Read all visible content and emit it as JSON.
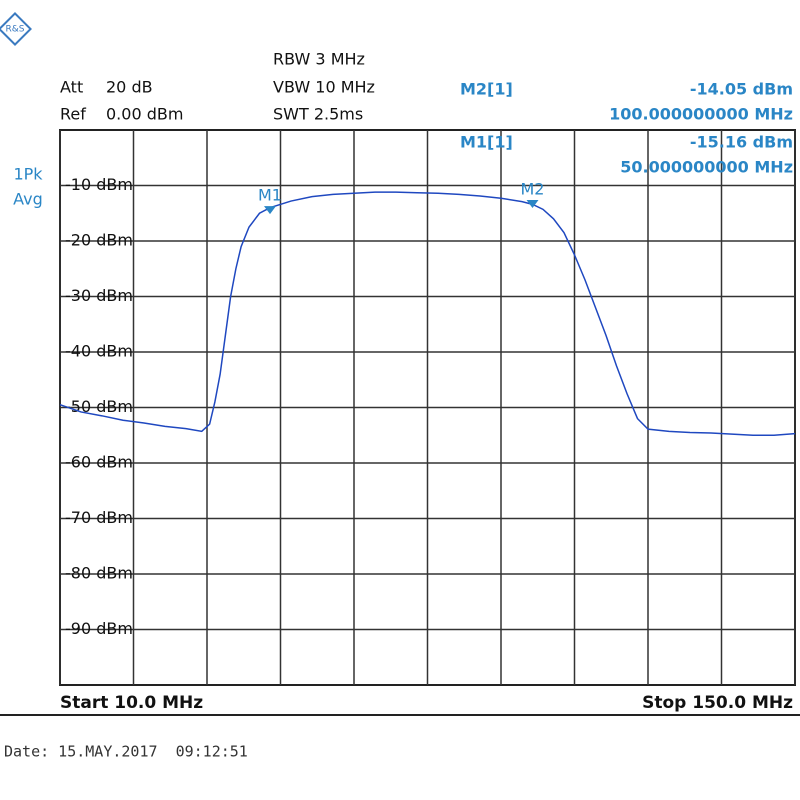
{
  "chart_data": {
    "type": "line",
    "settings_left": [
      "Att",
      "Ref"
    ],
    "settings_left_values": [
      "20 dB",
      "0.00 dBm"
    ],
    "settings_center": [
      "RBW 3 MHz",
      "VBW 10 MHz",
      "SWT 2.5ms"
    ],
    "trace_mode": [
      "1Pk",
      "Avg"
    ],
    "start_label": "Start 10.0 MHz",
    "stop_label": "Stop 150.0 MHz",
    "date_label": "Date: 15.MAY.2017  09:12:51",
    "xlim": [
      10,
      150
    ],
    "xticks": [
      10,
      24,
      38,
      52,
      66,
      80,
      94,
      108,
      122,
      136,
      150
    ],
    "ylim": [
      -100,
      0
    ],
    "yticks": [
      {
        "value": -10,
        "label": "-10 dBm"
      },
      {
        "value": -20,
        "label": "-20 dBm"
      },
      {
        "value": -30,
        "label": "-30 dBm"
      },
      {
        "value": -40,
        "label": "-40 dBm"
      },
      {
        "value": -50,
        "label": "-50 dBm"
      },
      {
        "value": -60,
        "label": "-60 dBm"
      },
      {
        "value": -70,
        "label": "-70 dBm"
      },
      {
        "value": -80,
        "label": "-80 dBm"
      },
      {
        "value": -90,
        "label": "-90 dBm"
      }
    ],
    "grid": true,
    "color": "#1f48c0",
    "x": [
      10,
      14,
      18,
      22,
      26,
      30,
      34,
      37,
      38.5,
      39.5,
      40.5,
      41.5,
      42.5,
      43.5,
      44.5,
      46,
      48,
      50,
      54,
      58,
      62,
      66,
      70,
      74,
      78,
      82,
      86,
      90,
      94,
      98,
      100,
      102,
      104,
      106,
      108,
      110,
      112,
      114,
      116,
      118,
      120,
      122,
      126,
      130,
      134,
      138,
      142,
      146,
      150
    ],
    "values": [
      -49.5,
      -50.8,
      -51.5,
      -52.3,
      -52.8,
      -53.4,
      -53.8,
      -54.3,
      -53,
      -49,
      -44,
      -37,
      -30,
      -25,
      -21,
      -17.5,
      -15,
      -14,
      -12.8,
      -12,
      -11.6,
      -11.4,
      -11.2,
      -11.2,
      -11.3,
      -11.4,
      -11.6,
      -11.9,
      -12.3,
      -12.9,
      -13.4,
      -14.3,
      -16,
      -18.5,
      -22.5,
      -27,
      -32,
      -37,
      -42.5,
      -47.5,
      -52,
      -53.9,
      -54.3,
      -54.5,
      -54.6,
      -54.8,
      -55,
      -55,
      -54.7
    ],
    "marker_color": "#2a86c6",
    "markers": [
      {
        "tag": "M2",
        "name": "M2[1]",
        "x": 100,
        "x_label": "100.000000000 MHz",
        "value": -14.05,
        "value_label": "-14.05 dBm"
      },
      {
        "tag": "M1",
        "name": "M1[1]",
        "x": 50,
        "x_label": "50.000000000 MHz",
        "value": -15.16,
        "value_label": "-15.16 dBm"
      }
    ]
  }
}
